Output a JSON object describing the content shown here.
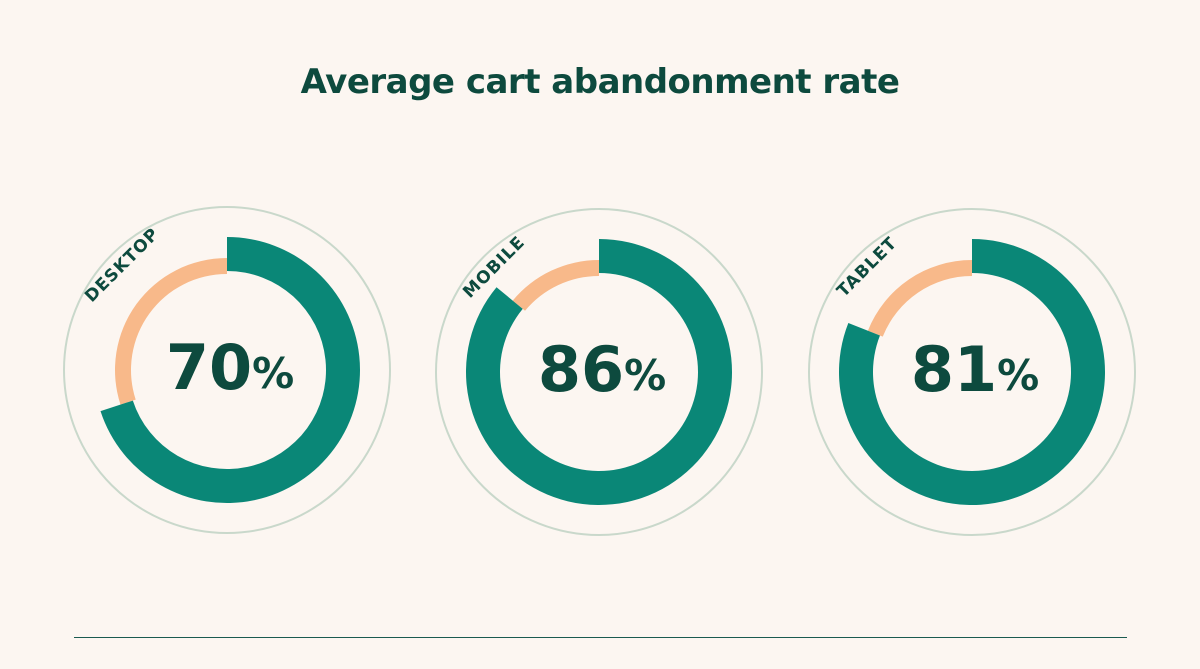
{
  "chart_data": {
    "type": "pie",
    "title": "Average cart abandonment rate",
    "categories": [
      "DESKTOP",
      "MOBILE",
      "TABLET"
    ],
    "values": [
      70,
      86,
      81
    ],
    "value_labels": [
      "70%",
      "86%",
      "81%"
    ],
    "unit": "%",
    "max": 100
  },
  "colors": {
    "value": "#0a8777",
    "remainder": "#f8b98a",
    "outline": "#c9d8cb",
    "text": "#0d4a3e",
    "background": "#fcf6f1"
  }
}
